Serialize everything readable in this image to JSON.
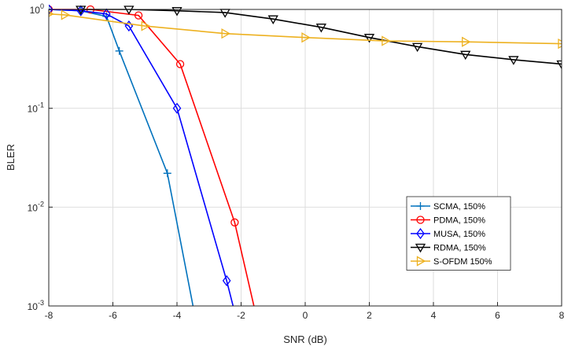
{
  "chart_data": {
    "type": "line",
    "title": "",
    "xlabel": "SNR (dB)",
    "ylabel": "BLER",
    "xlim": [
      -8,
      8
    ],
    "ylim": [
      0.001,
      1
    ],
    "yscale": "log",
    "grid": true,
    "legend_position": "lower-right",
    "x_ticks": [
      "-8",
      "-6",
      "-4",
      "-2",
      "0",
      "2",
      "4",
      "6",
      "8"
    ],
    "y_ticks": [
      {
        "base": "10",
        "exp": "0"
      },
      {
        "base": "10",
        "exp": "-1"
      },
      {
        "base": "10",
        "exp": "-2"
      },
      {
        "base": "10",
        "exp": "-3"
      }
    ],
    "series": [
      {
        "name": "SCMA, 150%",
        "color": "#0072BD",
        "marker": "plus",
        "x": [
          -8,
          -7,
          -6.2,
          -5.8,
          -4.3,
          -3.5
        ],
        "y": [
          1,
          0.97,
          0.85,
          0.38,
          0.022,
          0.001
        ]
      },
      {
        "name": "PDMA, 150%",
        "color": "#FF0000",
        "marker": "circle",
        "x": [
          -8,
          -6.7,
          -5.2,
          -3.9,
          -2.2,
          -1.6
        ],
        "y": [
          1,
          1,
          0.87,
          0.28,
          0.007,
          0.001
        ]
      },
      {
        "name": "MUSA, 150%",
        "color": "#0000FF",
        "marker": "diamond",
        "x": [
          -8,
          -7,
          -6.2,
          -5.5,
          -4,
          -2.45,
          -2.25
        ],
        "y": [
          1,
          0.97,
          0.9,
          0.68,
          0.1,
          0.0018,
          0.001
        ]
      },
      {
        "name": "RDMA, 150%",
        "color": "#000000",
        "marker": "triangle-down",
        "x": [
          -7,
          -5.5,
          -4,
          -2.5,
          -1,
          0.5,
          2,
          3.5,
          5,
          6.5,
          8
        ],
        "y": [
          1,
          1,
          0.97,
          0.93,
          0.8,
          0.66,
          0.52,
          0.42,
          0.35,
          0.31,
          0.28
        ]
      },
      {
        "name": "S-OFDM 150%",
        "color": "#EDB120",
        "marker": "triangle-right",
        "x": [
          -8,
          -7.5,
          -5,
          -2.5,
          0,
          2.5,
          5,
          8
        ],
        "y": [
          0.9,
          0.88,
          0.68,
          0.57,
          0.52,
          0.48,
          0.47,
          0.45
        ]
      }
    ]
  }
}
